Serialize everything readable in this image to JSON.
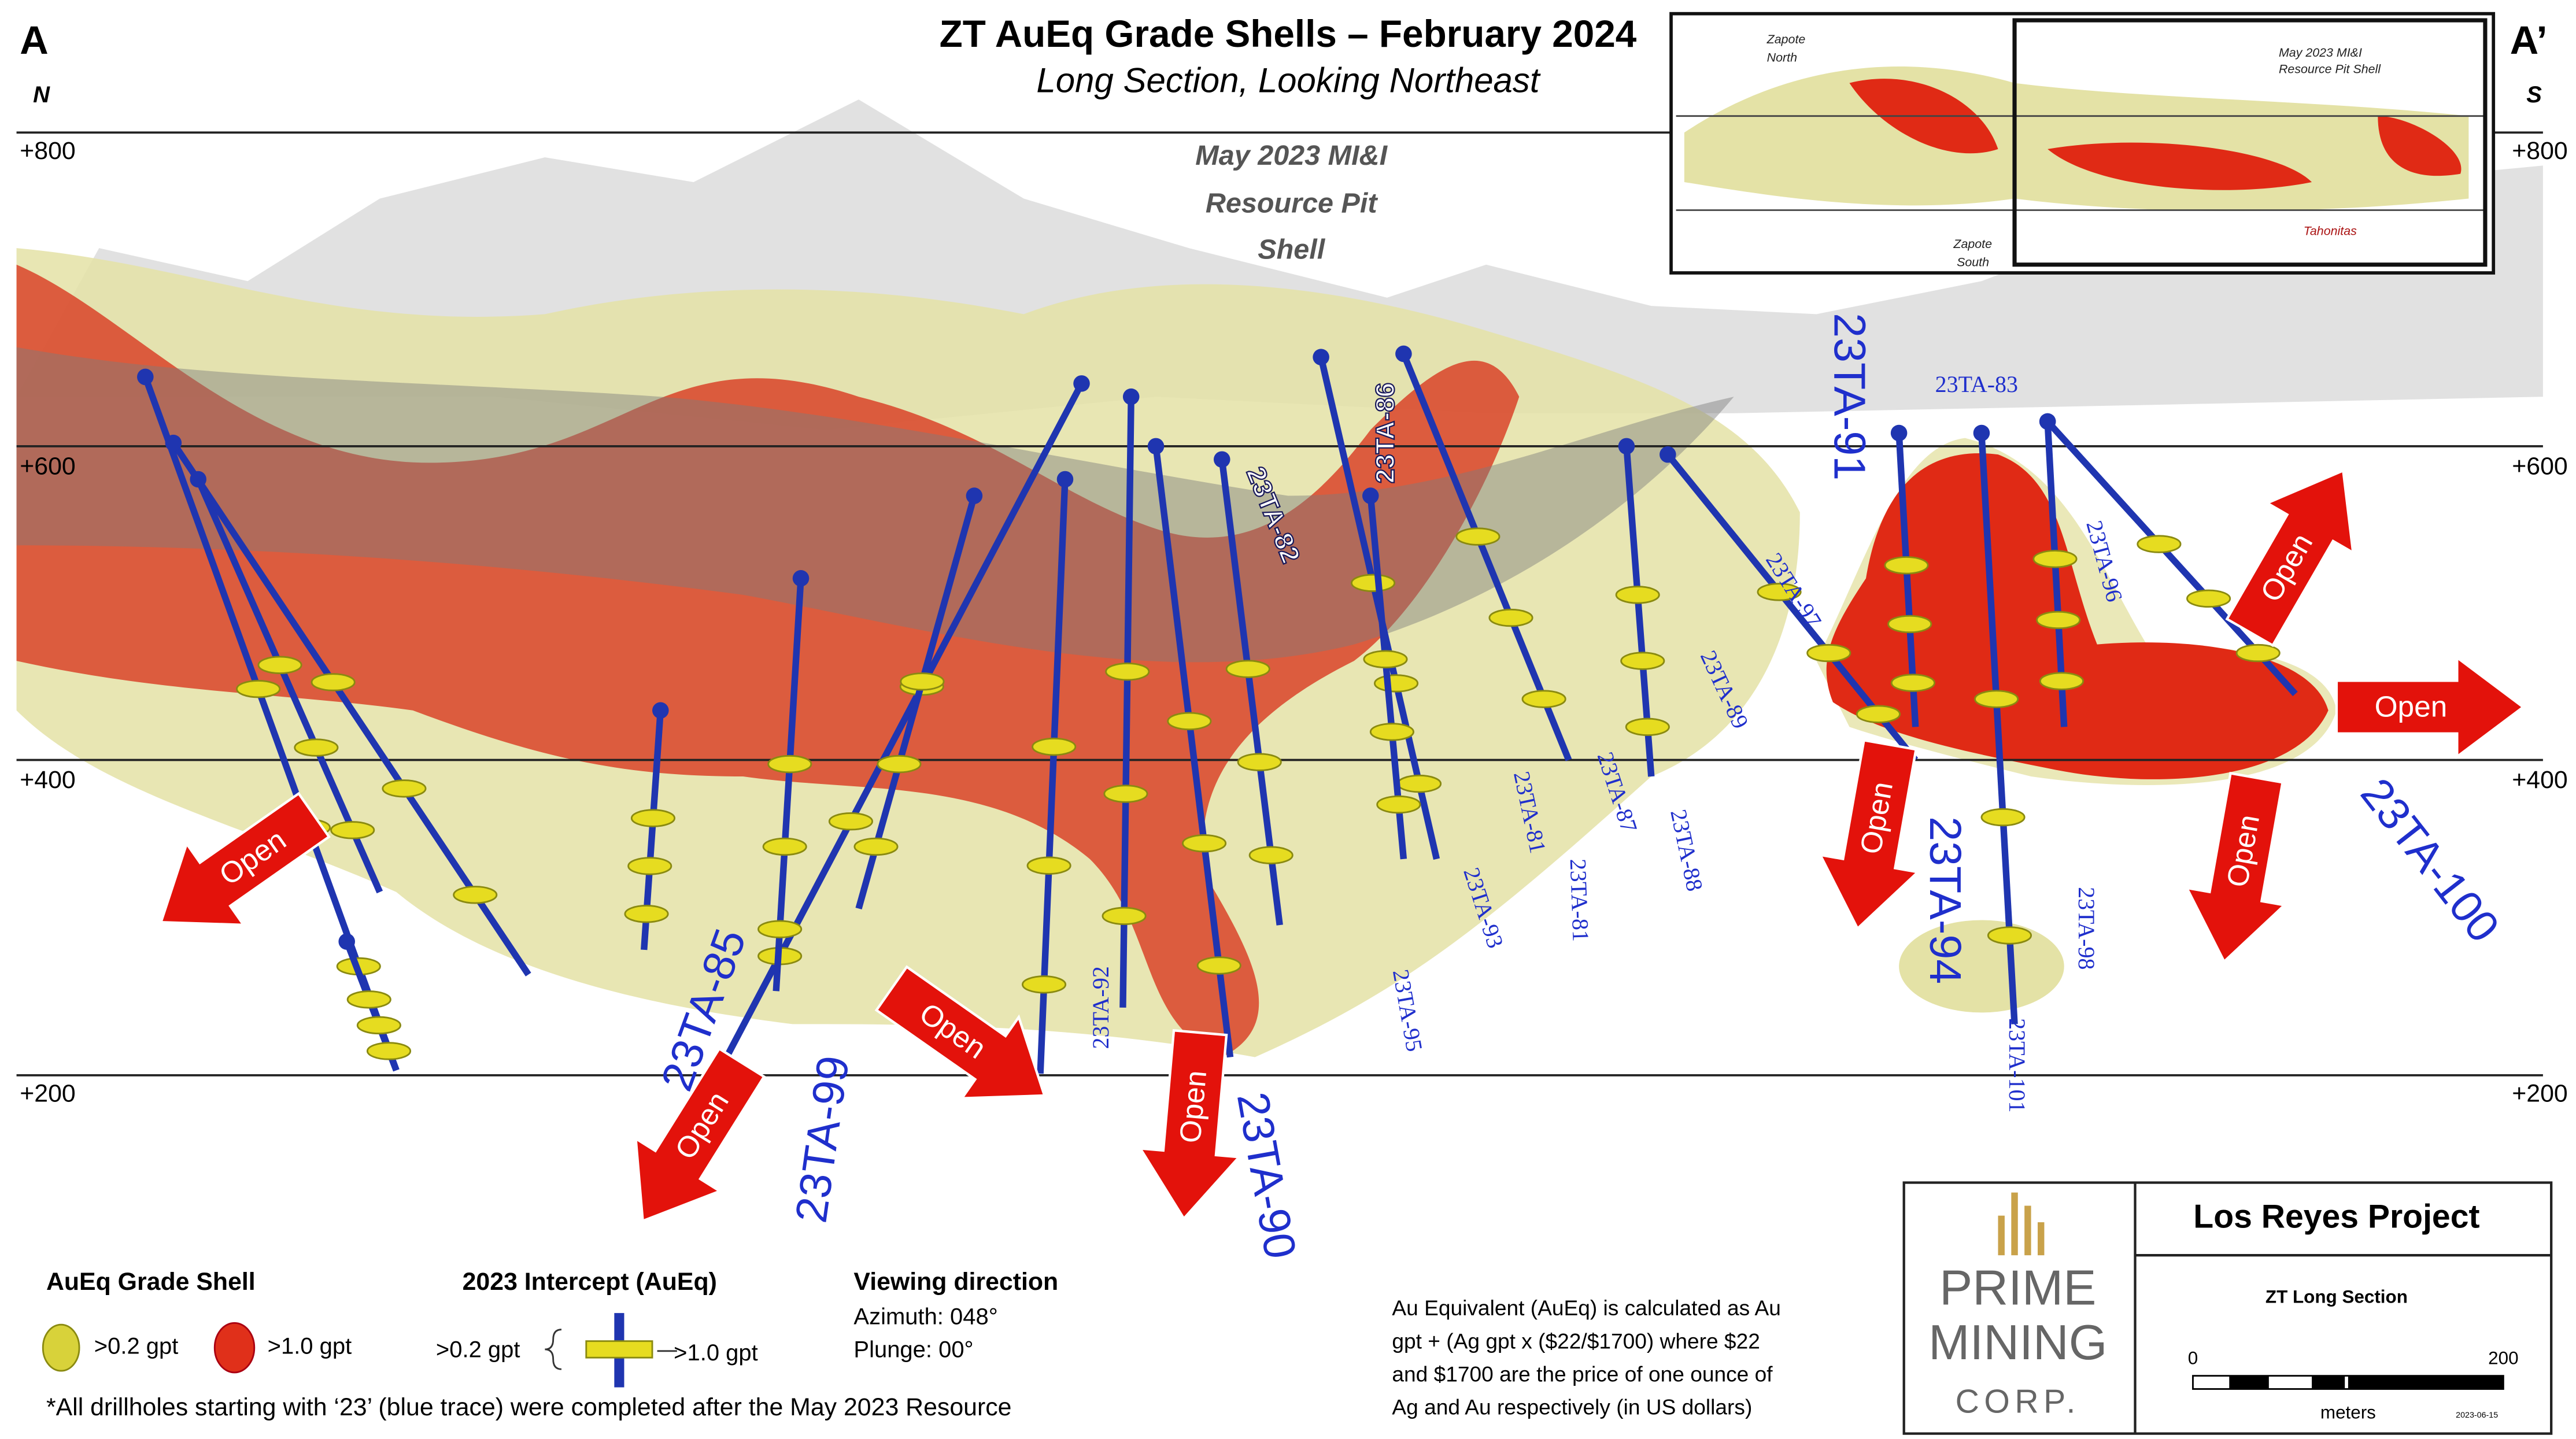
{
  "header": {
    "title": "ZT AuEq Grade Shells – February 2024",
    "subtitle": "Long Section, Looking Northeast",
    "left_end": "A",
    "left_dir": "N",
    "right_end": "A’",
    "right_dir": "S"
  },
  "elevations": [
    "+800",
    "+600",
    "+400",
    "+200"
  ],
  "pit_shell_label": [
    "May 2023 MI&I",
    "Resource Pit",
    "Shell"
  ],
  "inset": {
    "zapote_north": [
      "Zapote",
      "North"
    ],
    "pit_shell": [
      "May 2023 MI&I",
      "Resource Pit Shell"
    ],
    "zapote_south": [
      "Zapote",
      "South"
    ],
    "tahonitas": "Tahonitas"
  },
  "drillholes": [
    "23TA-91",
    "23TA-83",
    "23TA-86",
    "23TA-82",
    "23TA-97",
    "23TA-89",
    "23TA-96",
    "23TA-81",
    "23TA-87",
    "23TA-81",
    "23TA-88",
    "23TA-93",
    "23TA-95",
    "23TA-92",
    "23TA-85",
    "23TA-99",
    "23TA-90",
    "23TA-94",
    "23TA-98",
    "23TA-101",
    "23TA-100"
  ],
  "open_label": "Open",
  "legend": {
    "shell_title": "AuEq Grade Shell",
    "shell_low": ">0.2 gpt",
    "shell_high": ">1.0 gpt",
    "intercept_title": "2023 Intercept (AuEq)",
    "intercept_low": ">0.2 gpt",
    "intercept_high": ">1.0 gpt",
    "view_title": "Viewing direction",
    "azimuth": "Azimuth: 048°",
    "plunge": "Plunge: 00°"
  },
  "footnote": "*All drillholes starting with ‘23’ (blue trace) were completed after the May 2023 Resource",
  "note": [
    "Au Equivalent (AuEq) is calculated as Au",
    "gpt + (Ag gpt x ($22/$1700) where $22",
    "and $1700 are the price of one ounce of",
    "Ag and Au respectively (in US dollars)"
  ],
  "title_block": {
    "logo": [
      "PRIME",
      "MINING",
      "CORP."
    ],
    "project": "Los Reyes Project",
    "sheet": "ZT Long Section",
    "scale_start": "0",
    "scale_end": "200",
    "scale_unit": "meters",
    "date": "2023-06-15"
  }
}
